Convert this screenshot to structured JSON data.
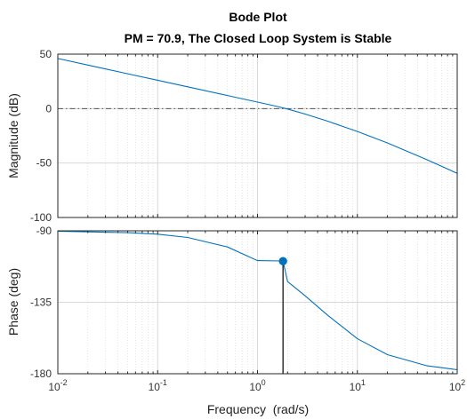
{
  "chart_data": [
    {
      "type": "line",
      "title": "Bode Plot",
      "subtitle": "PM = 70.9, The Closed Loop System is Stable",
      "ylabel": "Magnitude (dB)",
      "xscale": "log",
      "xlim": [
        0.01,
        100
      ],
      "ylim": [
        -100,
        50
      ],
      "yticks": [
        "50",
        "0",
        "-50",
        "-100"
      ],
      "grid": true,
      "x": [
        0.01,
        0.02,
        0.05,
        0.1,
        0.2,
        0.5,
        1,
        1.5,
        2,
        3,
        5,
        10,
        20,
        50,
        100
      ],
      "series": [
        {
          "values": [
            46.0,
            40.0,
            32.0,
            26.0,
            20.0,
            12.0,
            6.0,
            2.4,
            -0.4,
            -5.0,
            -11.5,
            -21.0,
            -31.5,
            -47.0,
            -59.5
          ]
        }
      ],
      "reference_line_y": 0
    },
    {
      "type": "line",
      "ylabel": "Phase (deg)",
      "xlabel": "Frequency  (rad/s)",
      "xscale": "log",
      "xlim": [
        0.01,
        100
      ],
      "ylim": [
        -180,
        -90
      ],
      "yticks": [
        "-90",
        "-135",
        "-180"
      ],
      "xticks": [
        "10^{-2}",
        "10^{-1}",
        "10^{0}",
        "10^{1}",
        "10^{2}"
      ],
      "grid": true,
      "x": [
        0.01,
        0.05,
        0.1,
        0.2,
        0.5,
        1,
        1.8,
        2,
        3,
        5,
        10,
        20,
        50,
        100
      ],
      "series": [
        {
          "values": [
            -90.2,
            -91.2,
            -92.1,
            -94.2,
            -100.2,
            -108.8,
            -109.0,
            -122.0,
            -131.0,
            -143.0,
            -158.0,
            -168.0,
            -175.0,
            -177.5
          ]
        }
      ],
      "marker": {
        "x": 1.8,
        "y": -109.1
      },
      "reference_line_y": -180
    }
  ],
  "colors": {
    "line": "#0072bd",
    "grid": "#d8d8d8",
    "ref": "#555555",
    "axis": "#262626"
  }
}
